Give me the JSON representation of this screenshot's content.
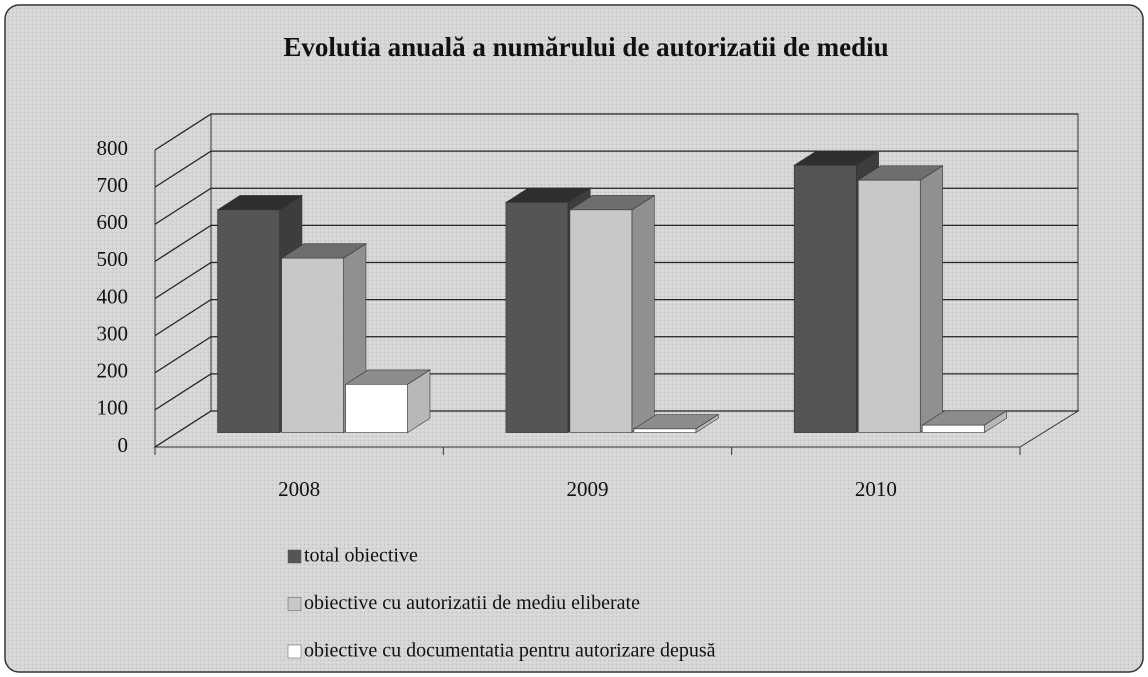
{
  "chart_data": {
    "type": "bar3d",
    "title": "Evolutia anuală a numărului de autorizatii de mediu",
    "categories": [
      "2008",
      "2009",
      "2010"
    ],
    "series": [
      {
        "name": "total obiective",
        "color": "#555555",
        "values": [
          600,
          620,
          720
        ]
      },
      {
        "name": "obiective cu autorizatii de mediu eliberate",
        "color": "#c8c8c8",
        "values": [
          470,
          600,
          680
        ]
      },
      {
        "name": "obiective cu documentatia pentru autorizare depusă",
        "color": "#ffffff",
        "values": [
          130,
          10,
          20
        ]
      }
    ],
    "ylim": [
      0,
      800
    ],
    "yticks": [
      0,
      100,
      200,
      300,
      400,
      500,
      600,
      700,
      800
    ],
    "grid": true
  }
}
